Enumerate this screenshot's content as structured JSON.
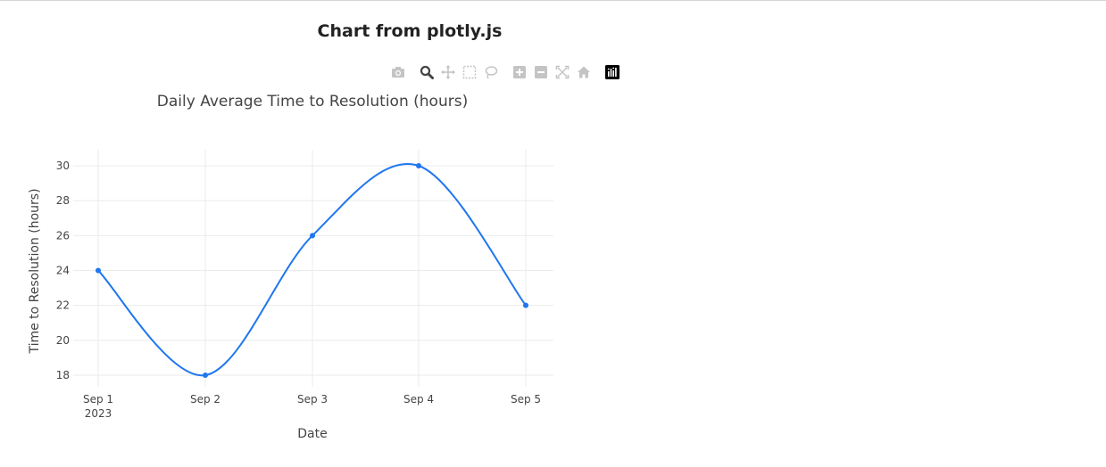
{
  "page": {
    "heading": "Chart from plotly.js"
  },
  "modebar": {
    "buttons": [
      {
        "name": "camera-icon",
        "active": false
      },
      {
        "name": "zoom-icon",
        "active": true
      },
      {
        "name": "pan-icon",
        "active": false
      },
      {
        "name": "box-select-icon",
        "active": false
      },
      {
        "name": "lasso-select-icon",
        "active": false
      },
      {
        "name": "zoom-in-icon",
        "active": false
      },
      {
        "name": "zoom-out-icon",
        "active": false
      },
      {
        "name": "autoscale-icon",
        "active": false
      },
      {
        "name": "reset-axes-icon",
        "active": false
      },
      {
        "name": "plotly-logo-icon",
        "active": false
      }
    ],
    "icon_color": "#c4c4c4",
    "active_color": "#444444"
  },
  "chart_data": {
    "type": "line",
    "title": "Daily Average Time to Resolution (hours)",
    "xlabel": "Date",
    "ylabel": "Time to Resolution (hours)",
    "x": [
      "2023-09-01",
      "2023-09-02",
      "2023-09-03",
      "2023-09-04",
      "2023-09-05"
    ],
    "x_tick_labels": [
      "Sep 1",
      "Sep 2",
      "Sep 3",
      "Sep 4",
      "Sep 5"
    ],
    "x_tick_year": "2023",
    "series": [
      {
        "values": [
          24,
          18,
          26,
          30,
          22
        ],
        "color": "#1f77f0",
        "mode": "lines+markers",
        "line_shape": "spline"
      }
    ],
    "yticks": [
      18,
      20,
      22,
      24,
      26,
      28,
      30
    ],
    "ylim": [
      17.6,
      30.4
    ],
    "grid": true,
    "colors": {
      "grid": "#ebebeb",
      "text": "#444444",
      "title": "#444444"
    }
  }
}
